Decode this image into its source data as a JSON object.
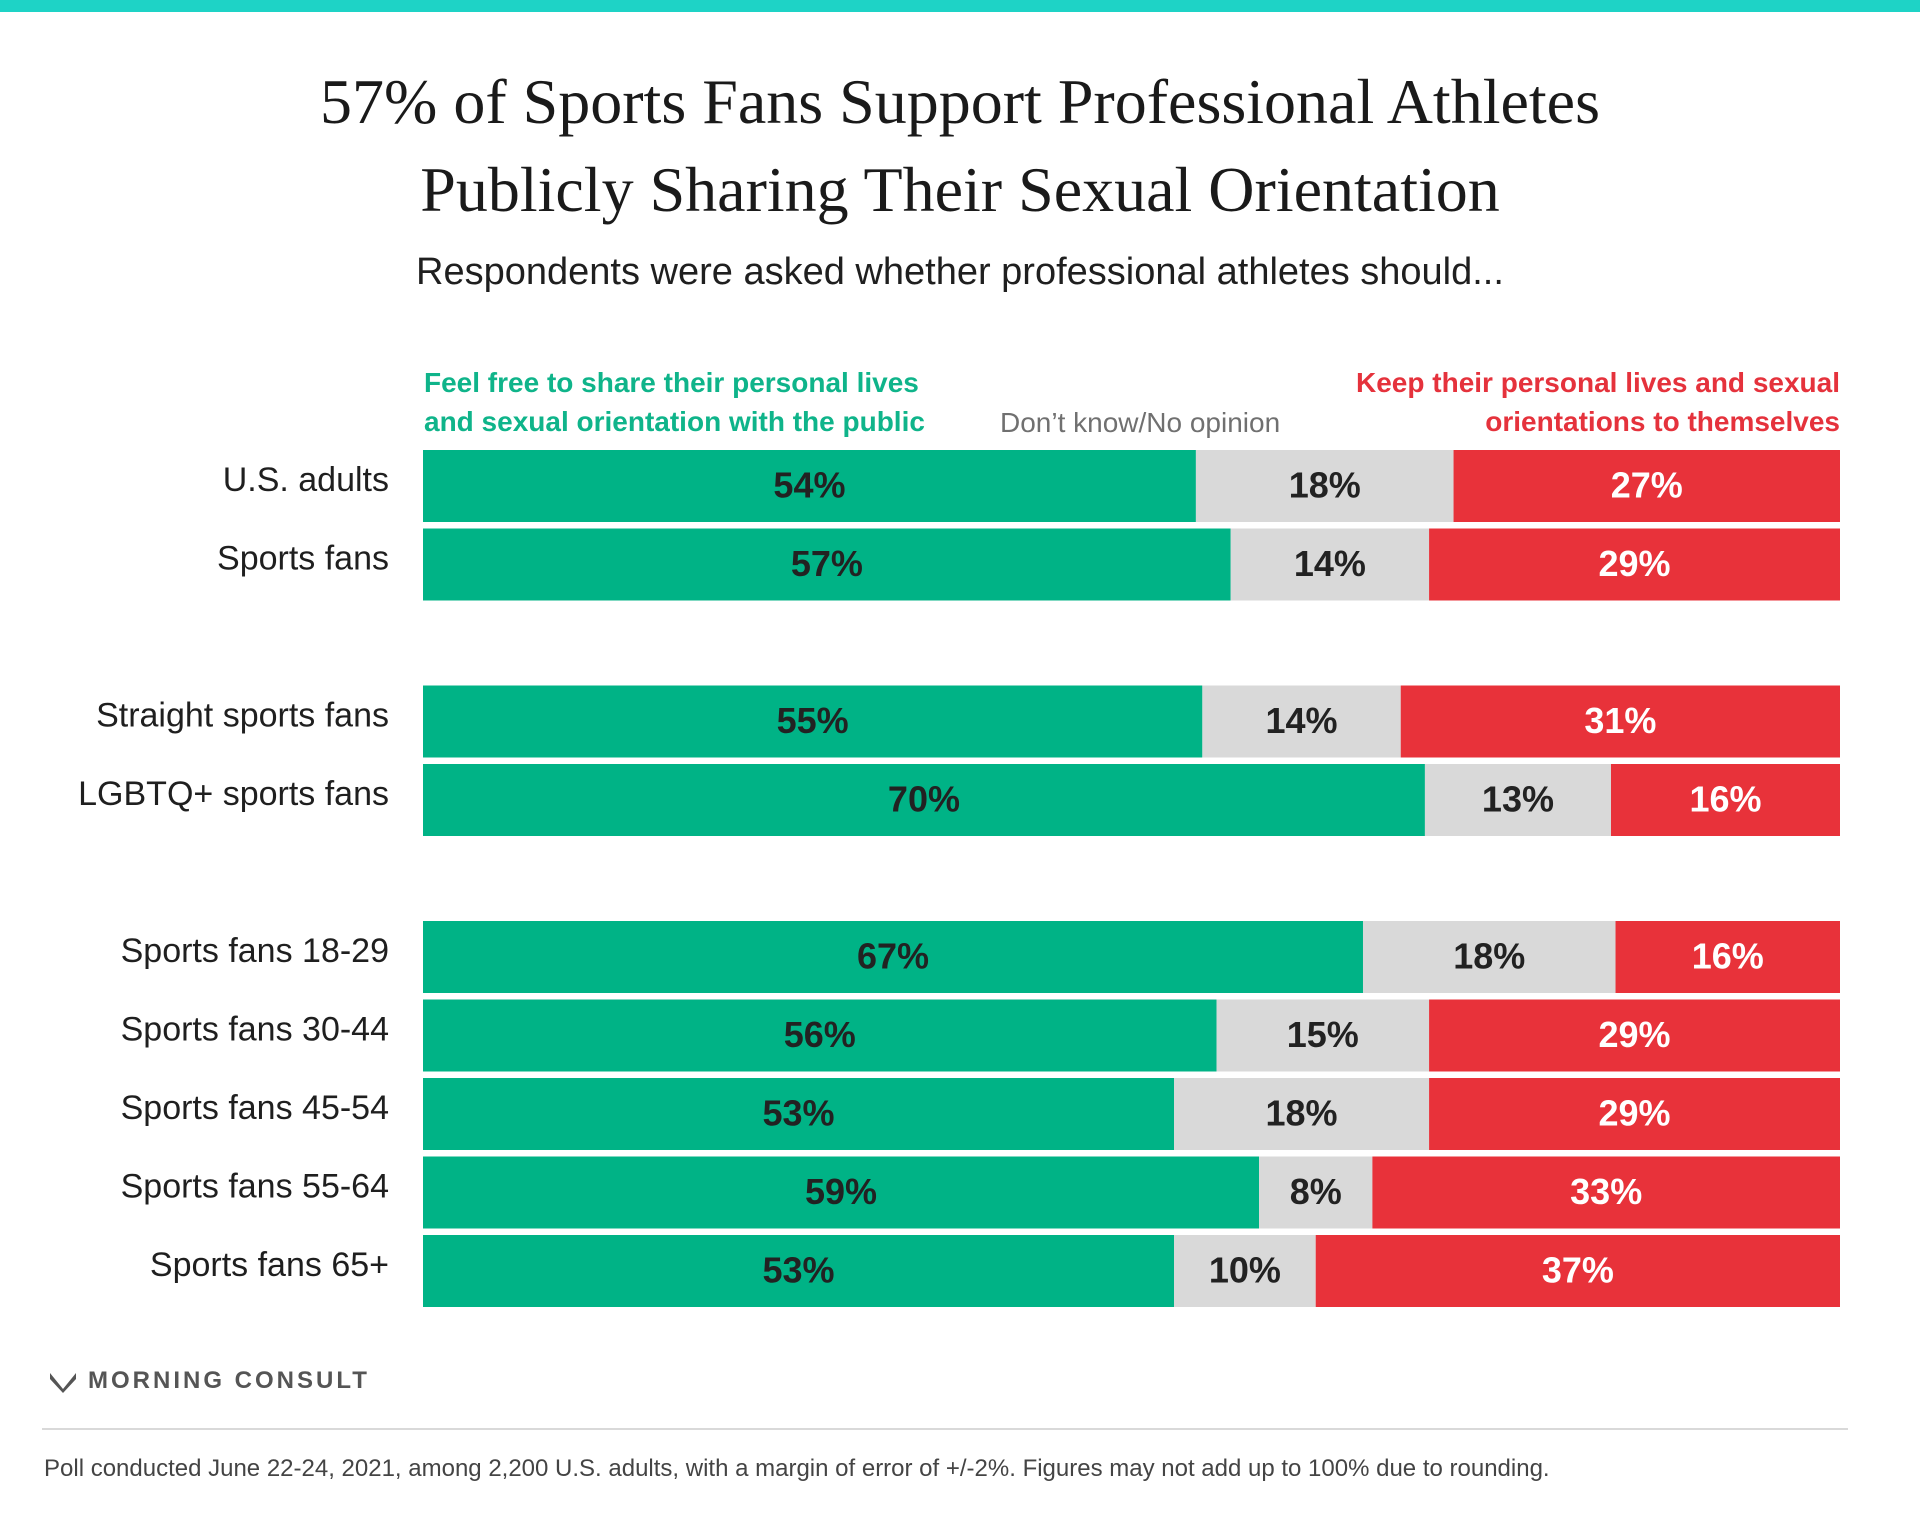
{
  "title_lines": [
    "57% of Sports Fans Support Professional Athletes",
    "Publicly Sharing Their Sexual Orientation"
  ],
  "subtitle": "Respondents were asked whether professional athletes should...",
  "legend": {
    "green_line1": "Feel free to share their personal lives",
    "green_line2": "and sexual orientation with the public",
    "gray": "Don’t know/No opinion",
    "red_line1": "Keep their personal lives and sexual",
    "red_line2": "orientations to themselves"
  },
  "colors": {
    "green": "#00b386",
    "gray": "#d9d9d9",
    "red": "#e8323a",
    "dark_label": "#222222",
    "light_label": "#ffffff",
    "accent": "#1ed3c6"
  },
  "brand": "MORNING CONSULT",
  "footnote": "Poll conducted June 22-24, 2021, among 2,200 U.S. adults, with a margin of error of +/-2%. Figures may not add up to 100% due to rounding.",
  "chart_data": {
    "type": "bar",
    "orientation": "horizontal",
    "stacked": true,
    "percent_stacked": true,
    "categories": [
      "U.S. adults",
      "Sports fans",
      "Straight sports fans",
      "LGBTQ+ sports fans",
      "Sports fans 18-29",
      "Sports fans 30-44",
      "Sports fans 45-54",
      "Sports fans 55-64",
      "Sports fans 65+"
    ],
    "groups": [
      [
        0,
        1
      ],
      [
        2,
        3
      ],
      [
        4,
        5,
        6,
        7,
        8
      ]
    ],
    "series": [
      {
        "name": "Feel free to share their personal lives and sexual orientation with the public",
        "values": [
          54,
          57,
          55,
          70,
          67,
          56,
          53,
          59,
          53
        ]
      },
      {
        "name": "Don’t know/No opinion",
        "values": [
          18,
          14,
          14,
          13,
          18,
          15,
          18,
          8,
          10
        ]
      },
      {
        "name": "Keep their personal lives and sexual orientations to themselves",
        "values": [
          27,
          29,
          31,
          16,
          16,
          29,
          29,
          33,
          37
        ]
      }
    ],
    "value_suffix": "%",
    "legend": "top",
    "grid": false
  }
}
